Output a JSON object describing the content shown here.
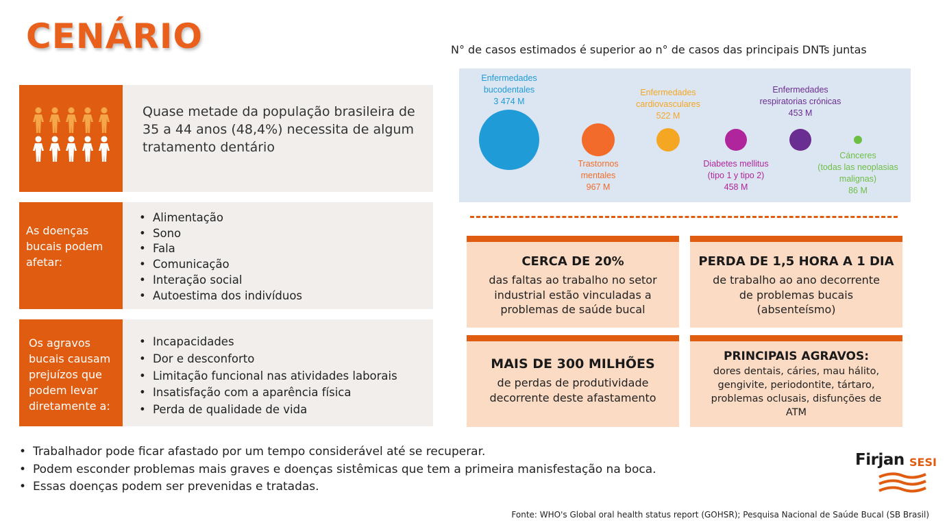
{
  "title": "CENÁRIO",
  "panels": {
    "first": {
      "icon": "people-icon",
      "text": "Quase metade da população brasileira de 35 a 44 anos (48,4%) necessita de algum tratamento dentário"
    },
    "second": {
      "label": "As doenças bucais podem afetar:",
      "items": [
        "Alimentação",
        "Sono",
        "Fala",
        "Comunicação",
        "Interação social",
        "Autoestima dos indivíduos"
      ]
    },
    "third": {
      "label": "Os agravos bucais causam prejuízos que podem levar diretamente a:",
      "items": [
        "Incapacidades",
        "Dor e desconforto",
        "Limitação funcional nas atividades laborais",
        "Insatisfação com a aparência física",
        "Perda de qualidade de vida"
      ]
    }
  },
  "chart": {
    "title": "N° de casos estimados é superior ao n° de casos das principais DNTs juntas",
    "bubbles": [
      {
        "label": [
          "Enfermedades",
          "bucodentales"
        ],
        "value": "3 474 M",
        "color": "#1F9BD7"
      },
      {
        "label": [
          "Trastornos",
          "mentales"
        ],
        "value": "967 M",
        "color": "#F26B2A"
      },
      {
        "label": [
          "Enfermedades",
          "cardiovasculares"
        ],
        "value": "522 M",
        "color": "#F5A623"
      },
      {
        "label": [
          "Diabetes mellitus",
          "(tipo 1 y tipo 2)"
        ],
        "value": "458 M",
        "color": "#B0259B"
      },
      {
        "label": [
          "Enfermedades",
          "respiratorias crónicas"
        ],
        "value": "453 M",
        "color": "#6A2D91"
      },
      {
        "label": [
          "Cánceres",
          "(todas las neoplasias",
          "malignas)"
        ],
        "value": "86 M",
        "color": "#6DBE45"
      }
    ]
  },
  "cards": [
    {
      "head": "CERCA DE 20%",
      "body": [
        "das faltas ao trabalho no setor",
        "industrial estão vinculadas a",
        "problemas de saúde bucal"
      ]
    },
    {
      "head": "PERDA DE 1,5 HORA A 1 DIA",
      "body": [
        "de trabalho ao ano decorrente",
        "de problemas bucais",
        "(absenteísmo)"
      ]
    },
    {
      "head": "MAIS DE 300 MILHÕES",
      "body": [
        "de perdas de produtividade",
        "decorrente deste afastamento"
      ]
    },
    {
      "head": "PRINCIPAIS AGRAVOS:",
      "body": [
        "dores dentais, cáries, mau hálito,",
        "gengivite, periodontite, tártaro,",
        "problemas oclusais, disfunções de",
        "ATM"
      ]
    }
  ],
  "bottom_bullets": [
    "Trabalhador pode ficar afastado por um tempo considerável até se recuperar.",
    "Podem esconder problemas mais graves e doenças sistêmicas que tem a primeira manisfestação na boca.",
    "Essas doenças podem ser prevenidas e tratadas."
  ],
  "logo": {
    "firjan": "Firjan",
    "sesi": "SESI"
  },
  "source": "Fonte: WHO's Global oral health status report (GOHSR); Pesquisa Nacional de Saúde Bucal (SB Brasil)",
  "colors": {
    "accent": "#E05C10",
    "panel_bg": "#F1EEEC",
    "card_bg": "#FCDBC4",
    "chart_bg": "#DCE6F2",
    "people_highlight": "#F5A54A"
  }
}
